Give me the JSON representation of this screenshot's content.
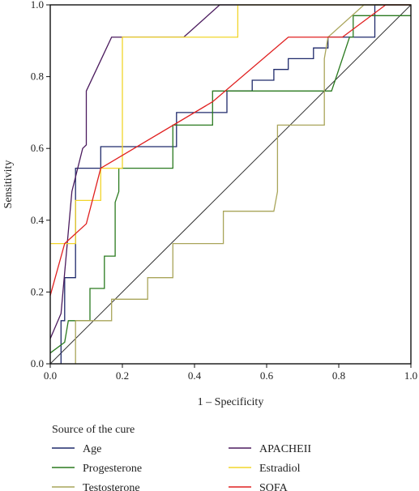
{
  "chart_data": {
    "type": "line",
    "title": "",
    "xlabel": "1 – Specificity",
    "ylabel": "Sensitivity",
    "xlim": [
      0,
      1
    ],
    "ylim": [
      0,
      1
    ],
    "x_ticks": [
      "0.0",
      "0.2",
      "0.4",
      "0.6",
      "0.8",
      "1.0"
    ],
    "y_ticks": [
      "0.0",
      "0.2",
      "0.4",
      "0.6",
      "0.8",
      "1.0"
    ],
    "grid": false,
    "legend_title": "Source of the cure",
    "legend_position": "bottom",
    "diagonal_reference": true,
    "series": [
      {
        "name": "Age",
        "color": "#1f2a6b",
        "x": [
          0.03,
          0.03,
          0.04,
          0.04,
          0.07,
          0.07,
          0.14,
          0.14,
          0.35,
          0.35,
          0.49,
          0.49,
          0.56,
          0.56,
          0.62,
          0.62,
          0.66,
          0.66,
          0.73,
          0.73,
          0.77,
          0.77,
          0.84,
          0.84,
          0.9,
          0.9,
          1.0
        ],
        "y": [
          0.0,
          0.12,
          0.12,
          0.24,
          0.24,
          0.545,
          0.545,
          0.605,
          0.605,
          0.7,
          0.7,
          0.76,
          0.76,
          0.79,
          0.79,
          0.82,
          0.82,
          0.85,
          0.85,
          0.88,
          0.88,
          0.91,
          0.91,
          0.91,
          0.91,
          1.0,
          1.0
        ]
      },
      {
        "name": "APACHEII",
        "color": "#4b1b5e",
        "x": [
          0.0,
          0.03,
          0.06,
          0.09,
          0.1,
          0.1,
          0.17,
          0.37,
          0.47,
          1.0
        ],
        "y": [
          0.07,
          0.14,
          0.48,
          0.6,
          0.61,
          0.76,
          0.91,
          0.91,
          1.0,
          1.0
        ]
      },
      {
        "name": "Progesterone",
        "color": "#2a7a1f",
        "x": [
          0.0,
          0.04,
          0.05,
          0.11,
          0.11,
          0.15,
          0.15,
          0.18,
          0.18,
          0.19,
          0.19,
          0.34,
          0.34,
          0.45,
          0.45,
          0.78,
          0.79,
          0.83,
          0.84,
          0.84,
          1.0
        ],
        "y": [
          0.03,
          0.06,
          0.12,
          0.12,
          0.21,
          0.21,
          0.3,
          0.3,
          0.45,
          0.48,
          0.545,
          0.545,
          0.665,
          0.665,
          0.76,
          0.76,
          0.79,
          0.91,
          0.91,
          0.97,
          0.97
        ]
      },
      {
        "name": "Estradiol",
        "color": "#f2d52a",
        "x": [
          0.0,
          0.07,
          0.07,
          0.14,
          0.14,
          0.2,
          0.2,
          0.52,
          0.52,
          0.86,
          0.86,
          1.0
        ],
        "y": [
          0.335,
          0.335,
          0.455,
          0.455,
          0.545,
          0.545,
          0.91,
          0.91,
          1.0,
          1.0,
          1.0,
          1.0
        ]
      },
      {
        "name": "Testosterone",
        "color": "#a9a55a",
        "x": [
          0.07,
          0.07,
          0.17,
          0.17,
          0.27,
          0.27,
          0.34,
          0.34,
          0.48,
          0.48,
          0.62,
          0.63,
          0.63,
          0.76,
          0.76,
          0.77,
          0.87,
          1.0
        ],
        "y": [
          0.0,
          0.12,
          0.12,
          0.18,
          0.18,
          0.24,
          0.24,
          0.335,
          0.335,
          0.425,
          0.425,
          0.48,
          0.665,
          0.665,
          0.85,
          0.91,
          1.0,
          1.0
        ]
      },
      {
        "name": "SOFA",
        "color": "#e02020",
        "x": [
          0.0,
          0.04,
          0.1,
          0.14,
          0.45,
          0.66,
          0.81,
          0.93,
          1.0
        ],
        "y": [
          0.19,
          0.335,
          0.39,
          0.545,
          0.73,
          0.91,
          0.91,
          1.0,
          1.0
        ]
      }
    ]
  }
}
